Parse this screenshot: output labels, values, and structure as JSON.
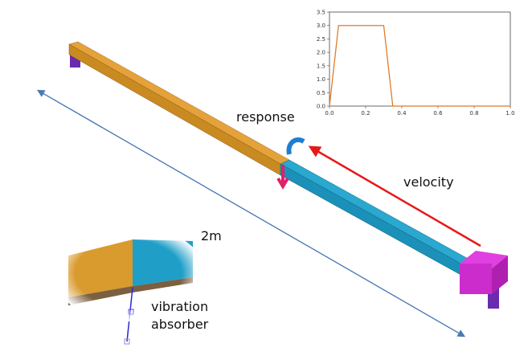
{
  "labels": {
    "response": "response",
    "velocity": "velocity",
    "length": "2m",
    "absorber_line1": "vibration",
    "absorber_line2": "absorber"
  },
  "chart_data": {
    "type": "line",
    "x": [
      0,
      0.05,
      0.3,
      0.35,
      1
    ],
    "series": [
      {
        "color": "#e07b2a",
        "values": [
          0,
          3,
          3,
          0,
          0
        ]
      }
    ],
    "xlim": [
      0,
      1
    ],
    "ylim": [
      0,
      3.5
    ],
    "xticks": [
      {
        "value": 0,
        "label": "0.0"
      },
      0.2,
      0.4,
      0.6,
      0.8,
      {
        "value": 1,
        "label": "1.0"
      }
    ],
    "yticks": [
      {
        "value": 0,
        "label": "0.0"
      },
      0.5,
      {
        "value": 1,
        "label": "1.0"
      },
      1.5,
      {
        "value": 2,
        "label": "2.0"
      },
      2.5,
      {
        "value": 3,
        "label": "3.0"
      },
      3.5
    ]
  }
}
